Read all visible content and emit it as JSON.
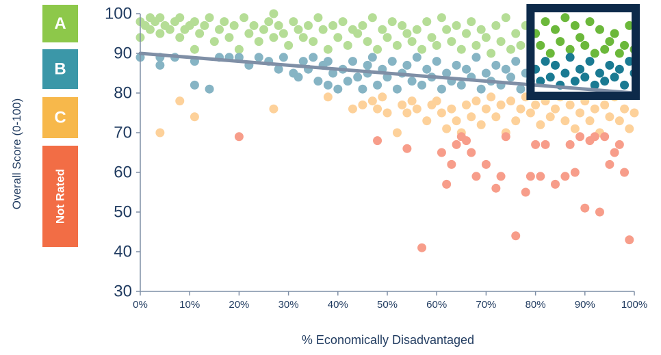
{
  "chart_data": {
    "type": "scatter",
    "title": "",
    "xlabel": "% Economically Disadvantaged",
    "ylabel": "Overall Score (0-100)",
    "xlim": [
      0,
      100
    ],
    "ylim": [
      30,
      100
    ],
    "x_ticks": [
      "0%",
      "10%",
      "20%",
      "30%",
      "40%",
      "50%",
      "60%",
      "70%",
      "80%",
      "90%",
      "100%"
    ],
    "y_ticks": [
      "30",
      "40",
      "50",
      "60",
      "70",
      "80",
      "90",
      "100"
    ],
    "grid": false,
    "legend": {
      "placement": "left",
      "entries": [
        {
          "label": "A",
          "color": "#8dc84a"
        },
        {
          "label": "B",
          "color": "#3b97a8"
        },
        {
          "label": "C",
          "color": "#f7b84b"
        },
        {
          "label": "Not Rated",
          "color": "#f26d45"
        }
      ]
    },
    "colors": {
      "A": "#b5dd96",
      "B": "#86b4c4",
      "C": "#fdd19a",
      "NR": "#f79d8a",
      "A_highlight": "#6bb83a",
      "B_highlight": "#1a7a92",
      "trendline": "#7f8fa6",
      "highlight_box": "#0d2a4a",
      "axis": "#7f8fa6",
      "text": "#1f3a5f"
    },
    "trendline": {
      "x": [
        0,
        100
      ],
      "y": [
        90,
        80
      ]
    },
    "highlight_region": {
      "x": [
        79,
        100
      ],
      "y": [
        80,
        100
      ]
    },
    "series": [
      {
        "name": "A",
        "points": [
          [
            0,
            98
          ],
          [
            0,
            94
          ],
          [
            1,
            97
          ],
          [
            2,
            99
          ],
          [
            2,
            96
          ],
          [
            3,
            98
          ],
          [
            4,
            99
          ],
          [
            4,
            95
          ],
          [
            5,
            97
          ],
          [
            6,
            96
          ],
          [
            7,
            98
          ],
          [
            8,
            94
          ],
          [
            8,
            99
          ],
          [
            9,
            96
          ],
          [
            10,
            97
          ],
          [
            11,
            91
          ],
          [
            11,
            98
          ],
          [
            12,
            95
          ],
          [
            13,
            97
          ],
          [
            14,
            99
          ],
          [
            15,
            93
          ],
          [
            16,
            96
          ],
          [
            17,
            98
          ],
          [
            18,
            94
          ],
          [
            19,
            97
          ],
          [
            20,
            91
          ],
          [
            21,
            99
          ],
          [
            22,
            95
          ],
          [
            23,
            97
          ],
          [
            24,
            93
          ],
          [
            25,
            96
          ],
          [
            26,
            98
          ],
          [
            27,
            100
          ],
          [
            27,
            94
          ],
          [
            28,
            97
          ],
          [
            29,
            95
          ],
          [
            30,
            92
          ],
          [
            31,
            98
          ],
          [
            32,
            96
          ],
          [
            33,
            94
          ],
          [
            34,
            97
          ],
          [
            35,
            93
          ],
          [
            36,
            99
          ],
          [
            37,
            96
          ],
          [
            38,
            91
          ],
          [
            39,
            97
          ],
          [
            40,
            94
          ],
          [
            41,
            98
          ],
          [
            42,
            92
          ],
          [
            43,
            96
          ],
          [
            44,
            95
          ],
          [
            45,
            97
          ],
          [
            46,
            93
          ],
          [
            47,
            99
          ],
          [
            48,
            91
          ],
          [
            49,
            96
          ],
          [
            50,
            94
          ],
          [
            51,
            98
          ],
          [
            52,
            92
          ],
          [
            53,
            97
          ],
          [
            54,
            95
          ],
          [
            55,
            93
          ],
          [
            56,
            96
          ],
          [
            57,
            91
          ],
          [
            58,
            98
          ],
          [
            59,
            94
          ],
          [
            60,
            92
          ],
          [
            61,
            99
          ],
          [
            62,
            96
          ],
          [
            63,
            93
          ],
          [
            64,
            97
          ],
          [
            65,
            91
          ],
          [
            66,
            95
          ],
          [
            67,
            98
          ],
          [
            68,
            92
          ],
          [
            69,
            96
          ],
          [
            70,
            94
          ],
          [
            71,
            90
          ],
          [
            72,
            97
          ],
          [
            73,
            93
          ],
          [
            74,
            99
          ],
          [
            75,
            91
          ],
          [
            76,
            95
          ],
          [
            77,
            92
          ],
          [
            78,
            97
          ]
        ]
      },
      {
        "name": "A-highlight",
        "points": [
          [
            80,
            95
          ],
          [
            81,
            92
          ],
          [
            82,
            98
          ],
          [
            83,
            90
          ],
          [
            84,
            96
          ],
          [
            85,
            93
          ],
          [
            86,
            99
          ],
          [
            87,
            91
          ],
          [
            88,
            97
          ],
          [
            89,
            94
          ],
          [
            90,
            92
          ],
          [
            91,
            98
          ],
          [
            92,
            90
          ],
          [
            93,
            96
          ],
          [
            94,
            91
          ],
          [
            95,
            93
          ],
          [
            96,
            95
          ],
          [
            97,
            90
          ],
          [
            98,
            92
          ],
          [
            99,
            97
          ],
          [
            100,
            91
          ]
        ]
      },
      {
        "name": "B",
        "points": [
          [
            0,
            89
          ],
          [
            4,
            87
          ],
          [
            4,
            89
          ],
          [
            7,
            89
          ],
          [
            11,
            82
          ],
          [
            11,
            88
          ],
          [
            14,
            81
          ],
          [
            16,
            89
          ],
          [
            18,
            89
          ],
          [
            20,
            89
          ],
          [
            22,
            87
          ],
          [
            24,
            89
          ],
          [
            26,
            88
          ],
          [
            28,
            86
          ],
          [
            29,
            89
          ],
          [
            31,
            85
          ],
          [
            32,
            84
          ],
          [
            33,
            88
          ],
          [
            34,
            86
          ],
          [
            35,
            89
          ],
          [
            36,
            83
          ],
          [
            37,
            87
          ],
          [
            38,
            82
          ],
          [
            38,
            88
          ],
          [
            39,
            85
          ],
          [
            40,
            81
          ],
          [
            41,
            86
          ],
          [
            42,
            83
          ],
          [
            43,
            88
          ],
          [
            44,
            84
          ],
          [
            45,
            81
          ],
          [
            46,
            87
          ],
          [
            46,
            85
          ],
          [
            47,
            89
          ],
          [
            48,
            82
          ],
          [
            49,
            86
          ],
          [
            50,
            84
          ],
          [
            51,
            88
          ],
          [
            52,
            81
          ],
          [
            53,
            85
          ],
          [
            54,
            87
          ],
          [
            55,
            83
          ],
          [
            56,
            89
          ],
          [
            57,
            82
          ],
          [
            58,
            86
          ],
          [
            59,
            84
          ],
          [
            60,
            88
          ],
          [
            61,
            81
          ],
          [
            62,
            85
          ],
          [
            63,
            83
          ],
          [
            64,
            87
          ],
          [
            65,
            82
          ],
          [
            66,
            86
          ],
          [
            67,
            84
          ],
          [
            68,
            89
          ],
          [
            69,
            81
          ],
          [
            70,
            85
          ],
          [
            71,
            83
          ],
          [
            72,
            87
          ],
          [
            73,
            82
          ],
          [
            74,
            86
          ],
          [
            75,
            84
          ],
          [
            76,
            88
          ],
          [
            77,
            81
          ],
          [
            78,
            85
          ],
          [
            79,
            83
          ]
        ]
      },
      {
        "name": "B-highlight",
        "points": [
          [
            80,
            86
          ],
          [
            81,
            83
          ],
          [
            82,
            88
          ],
          [
            83,
            84
          ],
          [
            84,
            87
          ],
          [
            85,
            82
          ],
          [
            86,
            85
          ],
          [
            87,
            89
          ],
          [
            88,
            83
          ],
          [
            89,
            86
          ],
          [
            90,
            84
          ],
          [
            91,
            88
          ],
          [
            92,
            82
          ],
          [
            93,
            85
          ],
          [
            94,
            83
          ],
          [
            95,
            87
          ],
          [
            96,
            84
          ],
          [
            97,
            86
          ],
          [
            98,
            82
          ],
          [
            99,
            88
          ],
          [
            100,
            85
          ]
        ]
      },
      {
        "name": "C",
        "points": [
          [
            4,
            70
          ],
          [
            8,
            78
          ],
          [
            11,
            74
          ],
          [
            27,
            76
          ],
          [
            38,
            79
          ],
          [
            43,
            76
          ],
          [
            45,
            77
          ],
          [
            47,
            78
          ],
          [
            48,
            76
          ],
          [
            49,
            79
          ],
          [
            50,
            75
          ],
          [
            52,
            70
          ],
          [
            53,
            77
          ],
          [
            54,
            75
          ],
          [
            55,
            78
          ],
          [
            56,
            76
          ],
          [
            58,
            73
          ],
          [
            59,
            77
          ],
          [
            60,
            78
          ],
          [
            61,
            75
          ],
          [
            62,
            71
          ],
          [
            63,
            76
          ],
          [
            64,
            73
          ],
          [
            65,
            70
          ],
          [
            66,
            77
          ],
          [
            67,
            74
          ],
          [
            68,
            78
          ],
          [
            69,
            72
          ],
          [
            70,
            76
          ],
          [
            71,
            79
          ],
          [
            72,
            74
          ],
          [
            73,
            77
          ],
          [
            74,
            70
          ],
          [
            75,
            78
          ],
          [
            76,
            73
          ],
          [
            77,
            76
          ],
          [
            78,
            79
          ],
          [
            79,
            75
          ],
          [
            80,
            77
          ],
          [
            81,
            72
          ],
          [
            82,
            78
          ],
          [
            83,
            74
          ],
          [
            84,
            76
          ],
          [
            85,
            79
          ],
          [
            86,
            73
          ],
          [
            87,
            77
          ],
          [
            88,
            71
          ],
          [
            89,
            75
          ],
          [
            90,
            78
          ],
          [
            91,
            73
          ],
          [
            92,
            76
          ],
          [
            93,
            70
          ],
          [
            94,
            77
          ],
          [
            95,
            74
          ],
          [
            96,
            79
          ],
          [
            97,
            73
          ],
          [
            98,
            76
          ],
          [
            99,
            71
          ],
          [
            100,
            75
          ]
        ]
      },
      {
        "name": "NR",
        "points": [
          [
            20,
            69
          ],
          [
            48,
            68
          ],
          [
            54,
            66
          ],
          [
            57,
            41
          ],
          [
            61,
            65
          ],
          [
            62,
            57
          ],
          [
            63,
            62
          ],
          [
            64,
            67
          ],
          [
            65,
            69
          ],
          [
            66,
            68
          ],
          [
            67,
            65
          ],
          [
            68,
            59
          ],
          [
            70,
            62
          ],
          [
            72,
            56
          ],
          [
            73,
            59
          ],
          [
            74,
            69
          ],
          [
            76,
            44
          ],
          [
            78,
            55
          ],
          [
            79,
            59
          ],
          [
            80,
            67
          ],
          [
            81,
            59
          ],
          [
            82,
            67
          ],
          [
            84,
            57
          ],
          [
            86,
            59
          ],
          [
            87,
            67
          ],
          [
            88,
            60
          ],
          [
            89,
            69
          ],
          [
            90,
            51
          ],
          [
            91,
            68
          ],
          [
            92,
            69
          ],
          [
            93,
            50
          ],
          [
            94,
            69
          ],
          [
            95,
            62
          ],
          [
            96,
            65
          ],
          [
            97,
            67
          ],
          [
            98,
            60
          ],
          [
            99,
            43
          ]
        ]
      }
    ]
  }
}
